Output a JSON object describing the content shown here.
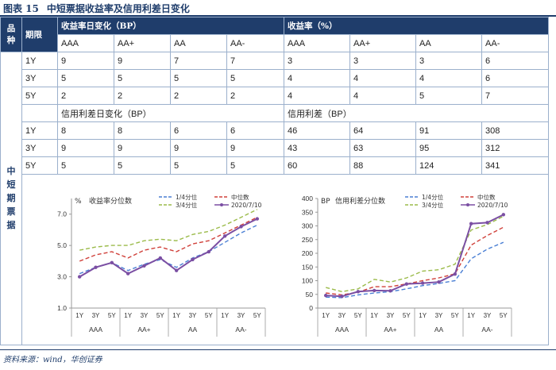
{
  "title": {
    "number": "图表 15",
    "text": "中短票据收益率及信用利差日变化"
  },
  "table": {
    "corner_label": "品种",
    "period_label": "期限",
    "side_label": "中短期票据",
    "yield_change_header": "收益率日变化（BP）",
    "yield_header": "收益率（%）",
    "spread_change_header": "信用利差日变化（BP）",
    "spread_header": "信用利差（BP）",
    "ratings": [
      "AAA",
      "AA+",
      "AA",
      "AA-"
    ],
    "yield_rows": [
      {
        "term": "1Y",
        "change": [
          "9",
          "9",
          "7",
          "7"
        ],
        "level": [
          "3",
          "3",
          "3",
          "6"
        ]
      },
      {
        "term": "3Y",
        "change": [
          "5",
          "5",
          "5",
          "5"
        ],
        "level": [
          "4",
          "4",
          "4",
          "6"
        ]
      },
      {
        "term": "5Y",
        "change": [
          "2",
          "2",
          "2",
          "2"
        ],
        "level": [
          "4",
          "4",
          "5",
          "7"
        ]
      }
    ],
    "spread_rows": [
      {
        "term": "1Y",
        "change": [
          "8",
          "8",
          "6",
          "6"
        ],
        "level": [
          "46",
          "64",
          "91",
          "308"
        ]
      },
      {
        "term": "3Y",
        "change": [
          "9",
          "9",
          "9",
          "9"
        ],
        "level": [
          "43",
          "63",
          "95",
          "312"
        ]
      },
      {
        "term": "5Y",
        "change": [
          "5",
          "5",
          "5",
          "5"
        ],
        "level": [
          "60",
          "88",
          "124",
          "341"
        ]
      }
    ]
  },
  "chart_data": [
    {
      "type": "line",
      "title": "收益率分位数",
      "unit": "%",
      "x": [
        "1Y",
        "3Y",
        "5Y",
        "1Y",
        "3Y",
        "5Y",
        "1Y",
        "3Y",
        "5Y",
        "1Y",
        "3Y",
        "5Y"
      ],
      "groups": [
        "AAA",
        "AA+",
        "AA",
        "AA-"
      ],
      "yticks": [
        "1.0",
        "3.0",
        "5.0",
        "7.0"
      ],
      "ylim": [
        1.0,
        8.0
      ],
      "series": [
        {
          "name": "1/4分位",
          "color": "#4a7fd4",
          "dash": "5,3",
          "values": [
            3.2,
            3.6,
            3.9,
            3.4,
            3.8,
            4.1,
            3.6,
            4.2,
            4.6,
            5.2,
            5.8,
            6.3
          ]
        },
        {
          "name": "中位数",
          "color": "#d0403a",
          "dash": "5,3",
          "values": [
            4.0,
            4.4,
            4.6,
            4.2,
            4.7,
            4.9,
            4.6,
            5.1,
            5.3,
            5.8,
            6.3,
            6.8
          ]
        },
        {
          "name": "3/4分位",
          "color": "#9bbb4a",
          "dash": "5,3",
          "values": [
            4.7,
            4.9,
            5.0,
            5.0,
            5.3,
            5.4,
            5.3,
            5.7,
            5.9,
            6.3,
            6.8,
            7.3
          ]
        },
        {
          "name": "2020/7/10",
          "color": "#7b4fa3",
          "dash": "",
          "values": [
            3.0,
            3.6,
            3.9,
            3.2,
            3.7,
            4.2,
            3.4,
            4.1,
            4.6,
            5.6,
            6.2,
            6.7
          ]
        }
      ]
    },
    {
      "type": "line",
      "title": "信用利差分位数",
      "unit": "BP",
      "x": [
        "1Y",
        "3Y",
        "5Y",
        "1Y",
        "3Y",
        "5Y",
        "1Y",
        "3Y",
        "5Y",
        "1Y",
        "3Y",
        "5Y"
      ],
      "groups": [
        "AAA",
        "AA+",
        "AA",
        "AA-"
      ],
      "yticks": [
        "0",
        "50",
        "100",
        "150",
        "200",
        "250",
        "300",
        "350",
        "400"
      ],
      "ylim": [
        0,
        400
      ],
      "series": [
        {
          "name": "1/4分位",
          "color": "#4a7fd4",
          "dash": "5,3",
          "values": [
            40,
            38,
            48,
            55,
            60,
            70,
            82,
            90,
            100,
            180,
            215,
            240
          ]
        },
        {
          "name": "中位数",
          "color": "#d0403a",
          "dash": "5,3",
          "values": [
            55,
            48,
            58,
            78,
            78,
            88,
            100,
            110,
            125,
            230,
            265,
            295
          ]
        },
        {
          "name": "3/4分位",
          "color": "#9bbb4a",
          "dash": "5,3",
          "values": [
            75,
            60,
            70,
            105,
            95,
            110,
            135,
            140,
            160,
            285,
            305,
            335
          ]
        },
        {
          "name": "2020/7/10",
          "color": "#7b4fa3",
          "dash": "",
          "values": [
            46,
            43,
            60,
            64,
            63,
            88,
            91,
            95,
            124,
            308,
            312,
            341
          ]
        }
      ]
    }
  ],
  "source": "资料来源：wind，华创证券"
}
